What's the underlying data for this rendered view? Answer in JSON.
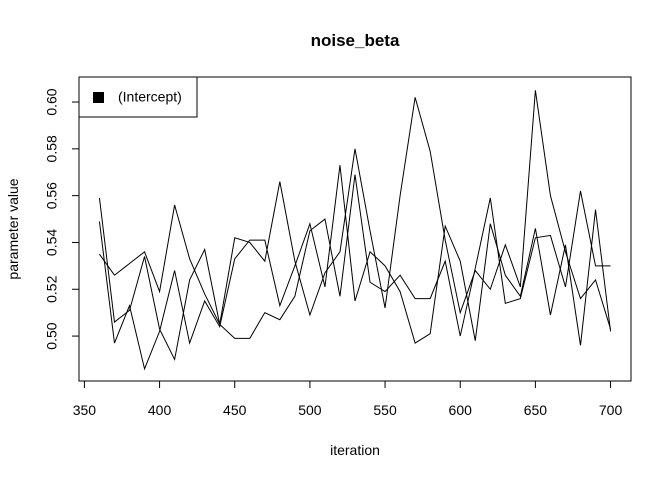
{
  "chart_data": {
    "type": "line",
    "title": "noise_beta",
    "x_label": "iteration",
    "y_label": "parameter value",
    "x": [
      360,
      370,
      380,
      390,
      400,
      410,
      420,
      430,
      440,
      450,
      460,
      470,
      480,
      490,
      500,
      510,
      520,
      530,
      540,
      550,
      560,
      570,
      580,
      590,
      600,
      610,
      620,
      630,
      640,
      650,
      660,
      670,
      680,
      690,
      700
    ],
    "series": [
      {
        "color": "#000000",
        "values": [
          0.559,
          0.506,
          0.511,
          0.534,
          0.503,
          0.49,
          0.524,
          0.537,
          0.505,
          0.542,
          0.54,
          0.532,
          0.566,
          0.532,
          0.509,
          0.527,
          0.536,
          0.58,
          0.545,
          0.512,
          0.56,
          0.602,
          0.579,
          0.541,
          0.51,
          0.528,
          0.52,
          0.539,
          0.521,
          0.605,
          0.56,
          0.536,
          0.516,
          0.524,
          0.503
        ]
      },
      {
        "color": "#000000",
        "values": [
          0.549,
          0.497,
          0.513,
          0.486,
          0.502,
          0.528,
          0.497,
          0.515,
          0.504,
          0.533,
          0.541,
          0.541,
          0.513,
          0.53,
          0.548,
          0.521,
          0.573,
          0.515,
          0.536,
          0.53,
          0.519,
          0.497,
          0.501,
          0.547,
          0.532,
          0.498,
          0.548,
          0.526,
          0.517,
          0.546,
          0.509,
          0.539,
          0.496,
          0.554,
          0.502
        ]
      },
      {
        "color": "#000000",
        "values": [
          0.535,
          0.526,
          0.531,
          0.536,
          0.519,
          0.556,
          0.533,
          0.518,
          0.505,
          0.499,
          0.499,
          0.51,
          0.507,
          0.517,
          0.545,
          0.55,
          0.517,
          0.569,
          0.523,
          0.519,
          0.526,
          0.516,
          0.516,
          0.532,
          0.5,
          0.529,
          0.559,
          0.514,
          0.516,
          0.542,
          0.543,
          0.521,
          0.562,
          0.53,
          0.53
        ]
      }
    ],
    "legend": {
      "label": "(Intercept)",
      "position": "topleft",
      "color": "#000000"
    },
    "xlim": [
      346.4,
      713.6
    ],
    "xticks": [
      350,
      400,
      450,
      500,
      550,
      600,
      650,
      700
    ],
    "ylim": [
      0.4808,
      0.6107
    ],
    "yticks": [
      {
        "value": 0.5,
        "label": "0.50"
      },
      0.52,
      0.54,
      0.56,
      0.58,
      {
        "value": 0.6,
        "label": "0.60"
      }
    ],
    "grid": false
  }
}
